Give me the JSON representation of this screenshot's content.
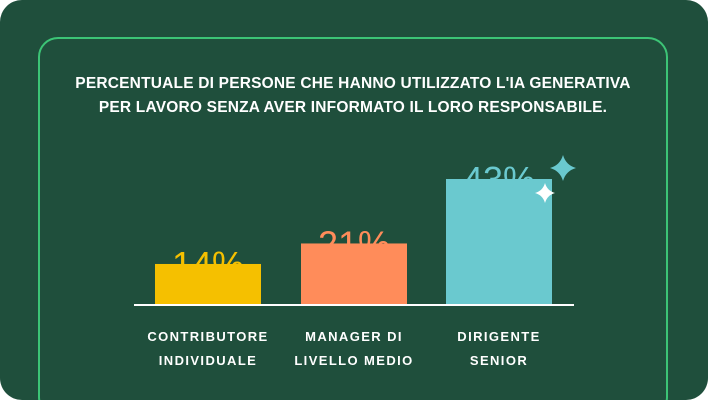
{
  "title_lines": [
    "PERCENTUALE DI PERSONE CHE HANNO UTILIZZATO L'IA GENERATIVA",
    "PER LAVORO SENZA AVER INFORMATO IL LORO RESPONSABILE."
  ],
  "colors": {
    "background": "#1f4f3c",
    "frame": "#3cc476",
    "baseline": "#ffffff",
    "sparkle_teal": "#6ac9cf",
    "sparkle_white": "#ffffff"
  },
  "chart_data": {
    "type": "bar",
    "title": "PERCENTUALE DI PERSONE CHE HANNO UTILIZZATO L'IA GENERATIVA PER LAVORO SENZA AVER INFORMATO IL LORO RESPONSABILE.",
    "categories": [
      [
        "CONTRIBUTORE",
        "INDIVIDUALE"
      ],
      [
        "MANAGER DI",
        "LIVELLO MEDIO"
      ],
      [
        "DIRIGENTE",
        "SENIOR"
      ]
    ],
    "values": [
      14,
      21,
      43
    ],
    "value_labels": [
      "14%",
      "21%",
      "43%"
    ],
    "bar_colors": [
      "#f5c000",
      "#ff8c5a",
      "#6ac9cf"
    ],
    "label_colors": [
      "#f5c000",
      "#ff8c5a",
      "#6ac9cf"
    ],
    "unit": "%",
    "grid": false,
    "legend": "none"
  }
}
